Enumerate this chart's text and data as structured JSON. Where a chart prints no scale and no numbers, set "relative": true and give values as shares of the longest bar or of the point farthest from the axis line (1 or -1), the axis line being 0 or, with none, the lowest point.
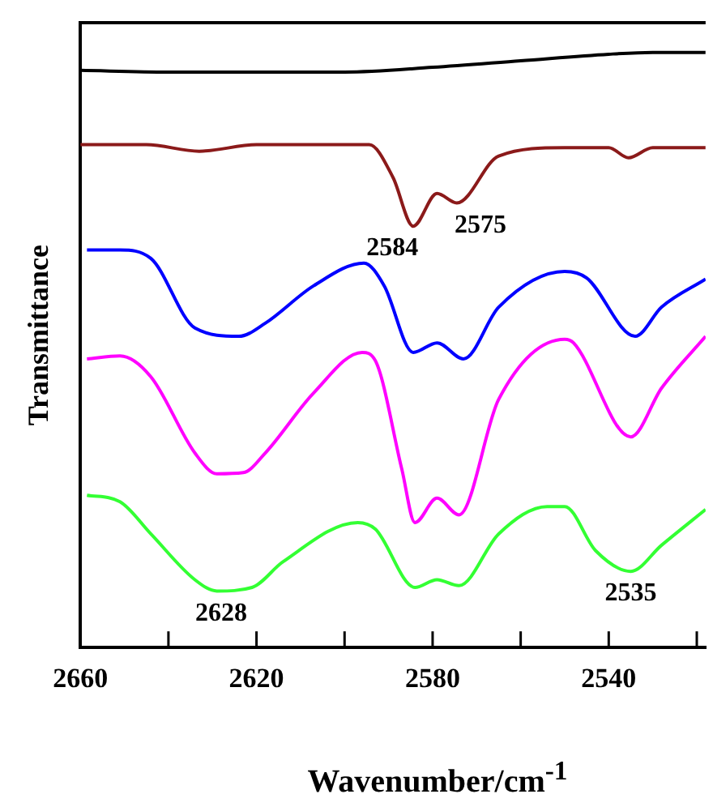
{
  "chart_data": {
    "type": "line",
    "xlabel": "Wavenumber/cm$^{-1}$",
    "ylabel": "Transmittance",
    "relative": true,
    "grid": false,
    "legend": false,
    "marker": "none",
    "line_style": "solid",
    "tick_labels": "x",
    "xlim": [
      2660,
      2518
    ],
    "xticks": [
      2660,
      {
        "value": 2640,
        "label": null
      },
      2620,
      {
        "value": 2600,
        "label": null
      },
      2580,
      {
        "value": 2560,
        "label": null
      },
      2540,
      {
        "value": 2520,
        "label": null
      }
    ],
    "series": [
      {
        "color": "#000000",
        "x": [
          2660,
          2640,
          2620,
          2600,
          2580,
          2560,
          2540,
          2530,
          2518
        ],
        "values": [
          0.97,
          0.967,
          0.967,
          0.967,
          0.975,
          0.986,
          0.997,
          1,
          1
        ]
      },
      {
        "color": "#8b1a1a",
        "x": [
          2660,
          2645,
          2633,
          2620,
          2600,
          2594.4,
          2589,
          2584.4,
          2579,
          2574.5,
          2565,
          2550,
          2540,
          2535.5,
          2530,
          2518
        ],
        "values": [
          0.845,
          0.845,
          0.834,
          0.845,
          0.845,
          0.845,
          0.79,
          0.708,
          0.763,
          0.747,
          0.826,
          0.84,
          0.84,
          0.823,
          0.84,
          0.84
        ]
      },
      {
        "color": "#0000ff",
        "x": [
          2658.5,
          2651,
          2644,
          2634,
          2624,
          2618,
          2607,
          2595.6,
          2591,
          2584.4,
          2579,
          2573,
          2565,
          2550,
          2545,
          2534,
          2528,
          2518
        ],
        "values": [
          0.668,
          0.668,
          0.654,
          0.537,
          0.523,
          0.545,
          0.608,
          0.646,
          0.608,
          0.496,
          0.512,
          0.485,
          0.572,
          0.632,
          0.621,
          0.523,
          0.572,
          0.619
        ]
      },
      {
        "color": "#ff00ff",
        "x": [
          2658.5,
          2651,
          2644,
          2634,
          2629,
          2623,
          2618,
          2607,
          2596,
          2593,
          2587,
          2584,
          2579,
          2574,
          2565,
          2550,
          2548,
          2535,
          2528,
          2518
        ],
        "values": [
          0.485,
          0.49,
          0.455,
          0.327,
          0.292,
          0.294,
          0.327,
          0.428,
          0.496,
          0.482,
          0.3,
          0.21,
          0.251,
          0.223,
          0.417,
          0.518,
          0.512,
          0.354,
          0.436,
          0.523
        ]
      },
      {
        "color": "#33ff33",
        "x": [
          2658.5,
          2651,
          2644,
          2634,
          2629,
          2621,
          2614,
          2597,
          2593,
          2584,
          2579,
          2574,
          2565,
          2554,
          2550,
          2543,
          2535,
          2528,
          2518
        ],
        "values": [
          0.256,
          0.245,
          0.191,
          0.114,
          0.095,
          0.101,
          0.144,
          0.21,
          0.199,
          0.101,
          0.114,
          0.104,
          0.191,
          0.237,
          0.237,
          0.163,
          0.128,
          0.172,
          0.232
        ]
      }
    ],
    "annotations": [
      {
        "text": "2584",
        "x": 2584,
        "y": 0.708
      },
      {
        "text": "2575",
        "x": 2575,
        "y": 0.747
      },
      {
        "text": "2628",
        "x": 2628,
        "y": 0.095
      },
      {
        "text": "2535",
        "x": 2535,
        "y": 0.128
      }
    ]
  }
}
